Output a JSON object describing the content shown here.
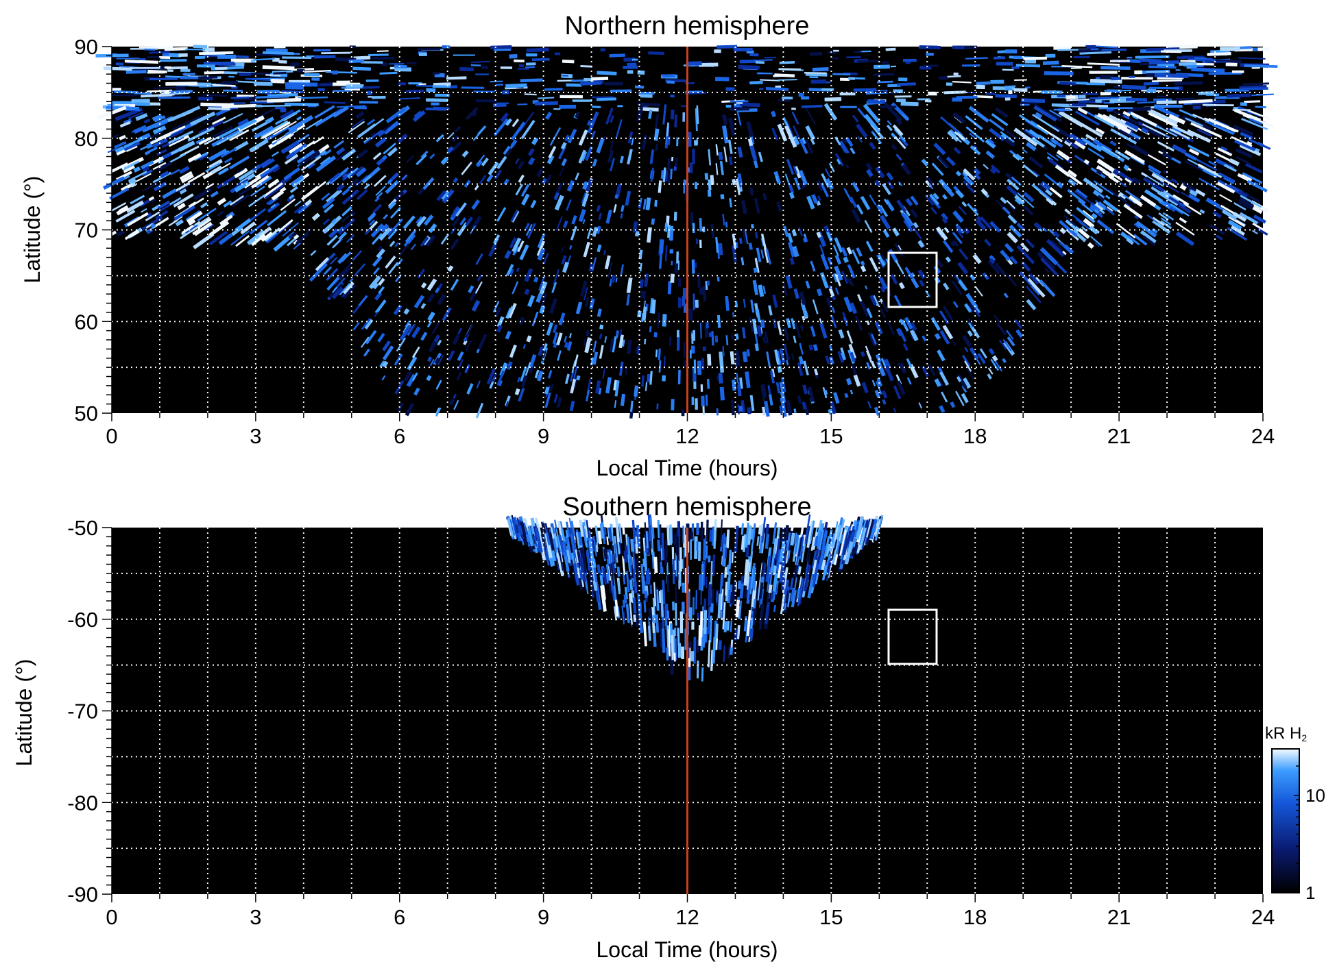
{
  "chart_data": [
    {
      "type": "heatmap",
      "title": "Northern hemisphere",
      "xlabel": "Local Time (hours)",
      "ylabel": "Latitude (°)",
      "xlim": [
        0,
        24
      ],
      "ylim": [
        50,
        90
      ],
      "xticks": [
        0,
        3,
        6,
        9,
        12,
        15,
        18,
        21,
        24
      ],
      "xtick_labels": [
        "0",
        "3",
        "6",
        "9",
        "12",
        "15",
        "18",
        "21",
        "24"
      ],
      "yticks": [
        50,
        60,
        70,
        80,
        90
      ],
      "ytick_labels": [
        "50",
        "60",
        "70",
        "80",
        "90"
      ],
      "grid": "dotted, every 1 hour and 5 degrees",
      "coverage": "emission observed poleward of ~68° at dawn/dusk, extending down to 50° between ~4 and ~20 LT",
      "marker_line": {
        "x": 12,
        "color": "#c8401c"
      },
      "box": {
        "x_range": [
          16.2,
          17.2
        ],
        "y_range": [
          61.5,
          67.5
        ],
        "color": "#ffffff"
      }
    },
    {
      "type": "heatmap",
      "title": "Southern hemisphere",
      "xlabel": "Local Time (hours)",
      "ylabel": "Latitude (°)",
      "xlim": [
        0,
        24
      ],
      "ylim": [
        -90,
        -50
      ],
      "xticks": [
        0,
        3,
        6,
        9,
        12,
        15,
        18,
        21,
        24
      ],
      "xtick_labels": [
        "0",
        "3",
        "6",
        "9",
        "12",
        "15",
        "18",
        "21",
        "24"
      ],
      "yticks": [
        -90,
        -80,
        -70,
        -60,
        -50
      ],
      "ytick_labels": [
        "-90",
        "-80",
        "-70",
        "-60",
        "-50"
      ],
      "grid": "dotted, every 1 hour and 5 degrees",
      "coverage": "emission observed only between ~8.3 and ~16 LT, from -50° down to about -67°",
      "marker_line": {
        "x": 12,
        "color": "#c8401c"
      },
      "box": {
        "x_range": [
          16.2,
          17.2
        ],
        "y_range": [
          -65,
          -59
        ]
      }
    }
  ],
  "colorbar": {
    "label": "kR H",
    "label_subscript": "2",
    "scale": "log",
    "range": [
      1,
      30
    ],
    "tick_labels": [
      "1",
      "10"
    ],
    "colors": [
      "#000000",
      "#0a1a70",
      "#1456d8",
      "#3c9cff",
      "#f4fbff"
    ]
  }
}
